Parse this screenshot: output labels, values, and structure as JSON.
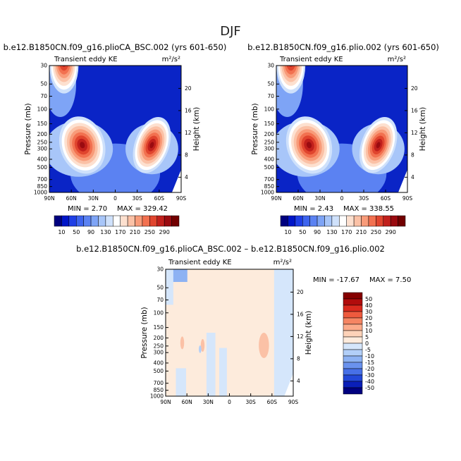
{
  "figure_title": "DJF",
  "chart_data": [
    {
      "type": "heatmap",
      "title": "b.e12.B1850CN.f09_g16.plioCA_BSC.002 (yrs 601-650)",
      "variable": "Transient eddy KE",
      "units": "m²/s²",
      "xlabel": "",
      "ylabel": "Pressure (mb)",
      "ylabel_right": "Height (km)",
      "x_ticks": [
        "90N",
        "60N",
        "30N",
        "0",
        "30S",
        "60S",
        "90S"
      ],
      "y_ticks": [
        "30",
        "50",
        "70",
        "100",
        "150",
        "200",
        "250",
        "300",
        "400",
        "500",
        "700",
        "850",
        "1000"
      ],
      "y_ticks_right": [
        "20",
        "16",
        "12",
        "8",
        "4"
      ],
      "min_label": "MIN =    2.70",
      "max_label": "MAX =  329.42",
      "min": 2.7,
      "max": 329.42,
      "features": [
        {
          "lat": 70,
          "p": 30,
          "value": 280,
          "desc": "polar night jet max"
        },
        {
          "lat": 45,
          "p": 270,
          "value": 300,
          "desc": "NH storm track max"
        },
        {
          "lat": -50,
          "p": 270,
          "value": 300,
          "desc": "SH storm track max"
        }
      ]
    },
    {
      "type": "heatmap",
      "title": "b.e12.B1850CN.f09_g16.plio.002 (yrs 601-650)",
      "variable": "Transient eddy KE",
      "units": "m²/s²",
      "xlabel": "",
      "ylabel": "Pressure (mb)",
      "ylabel_right": "Height (km)",
      "x_ticks": [
        "90N",
        "60N",
        "30N",
        "0",
        "30S",
        "60S",
        "90S"
      ],
      "y_ticks": [
        "30",
        "50",
        "70",
        "100",
        "150",
        "200",
        "250",
        "300",
        "400",
        "500",
        "700",
        "850",
        "1000"
      ],
      "y_ticks_right": [
        "20",
        "16",
        "12",
        "8",
        "4"
      ],
      "min_label": "MIN =    2.43",
      "max_label": "MAX =  338.55",
      "min": 2.43,
      "max": 338.55,
      "features": [
        {
          "lat": 70,
          "p": 30,
          "value": 280,
          "desc": "polar night jet max"
        },
        {
          "lat": 45,
          "p": 270,
          "value": 300,
          "desc": "NH storm track max"
        },
        {
          "lat": -50,
          "p": 270,
          "value": 300,
          "desc": "SH storm track max"
        }
      ]
    },
    {
      "type": "heatmap",
      "title": "b.e12.B1850CN.f09_g16.plioCA_BSC.002 – b.e12.B1850CN.f09_g16.plio.002",
      "variable": "Transient eddy KE",
      "units": "m²/s²",
      "xlabel": "",
      "ylabel": "Pressure (mb)",
      "ylabel_right": "Height (km)",
      "x_ticks": [
        "90N",
        "60N",
        "30N",
        "0",
        "30S",
        "60S",
        "90S"
      ],
      "y_ticks": [
        "30",
        "50",
        "70",
        "100",
        "150",
        "200",
        "250",
        "300",
        "400",
        "500",
        "700",
        "850",
        "1000"
      ],
      "y_ticks_right": [
        "20",
        "16",
        "12",
        "8",
        "4"
      ],
      "min_label": "MIN = -17.67",
      "max_label": "MAX =    7.50",
      "min": -17.67,
      "max": 7.5,
      "features": [
        {
          "lat": -45,
          "p": 230,
          "value": 7,
          "desc": "SH positive anomaly"
        },
        {
          "lat": 65,
          "p": 220,
          "value": 6,
          "desc": "NH positive anomaly"
        },
        {
          "lat": 85,
          "p": 40,
          "value": -15,
          "desc": "polar negative anomaly"
        }
      ]
    }
  ],
  "colorbar_abs": {
    "labels": [
      "10",
      "50",
      "90",
      "130",
      "170",
      "210",
      "250",
      "290"
    ],
    "colors": [
      "#00007f",
      "#0015c8",
      "#1f3fe6",
      "#3d64ee",
      "#5b82f2",
      "#7ea4f6",
      "#a8c6f9",
      "#cfe1fb",
      "#ffffff",
      "#fde0cf",
      "#fbc1a6",
      "#f89b79",
      "#f27150",
      "#e0452e",
      "#c1201c",
      "#9a0b10",
      "#720000"
    ]
  },
  "colorbar_diff": {
    "labels": [
      "50",
      "40",
      "30",
      "20",
      "15",
      "10",
      "5",
      "0",
      "-5",
      "-10",
      "-15",
      "-20",
      "-30",
      "-40",
      "-50"
    ],
    "colors": [
      "#850000",
      "#b10c0c",
      "#da2a1e",
      "#ee5a3d",
      "#f58563",
      "#fbab8b",
      "#fdd2b8",
      "#fdebdc",
      "#d5e6fb",
      "#b2cff8",
      "#8db2f3",
      "#6a92ee",
      "#4770e7",
      "#2348d8",
      "#0a1fb8",
      "#00007f"
    ]
  }
}
